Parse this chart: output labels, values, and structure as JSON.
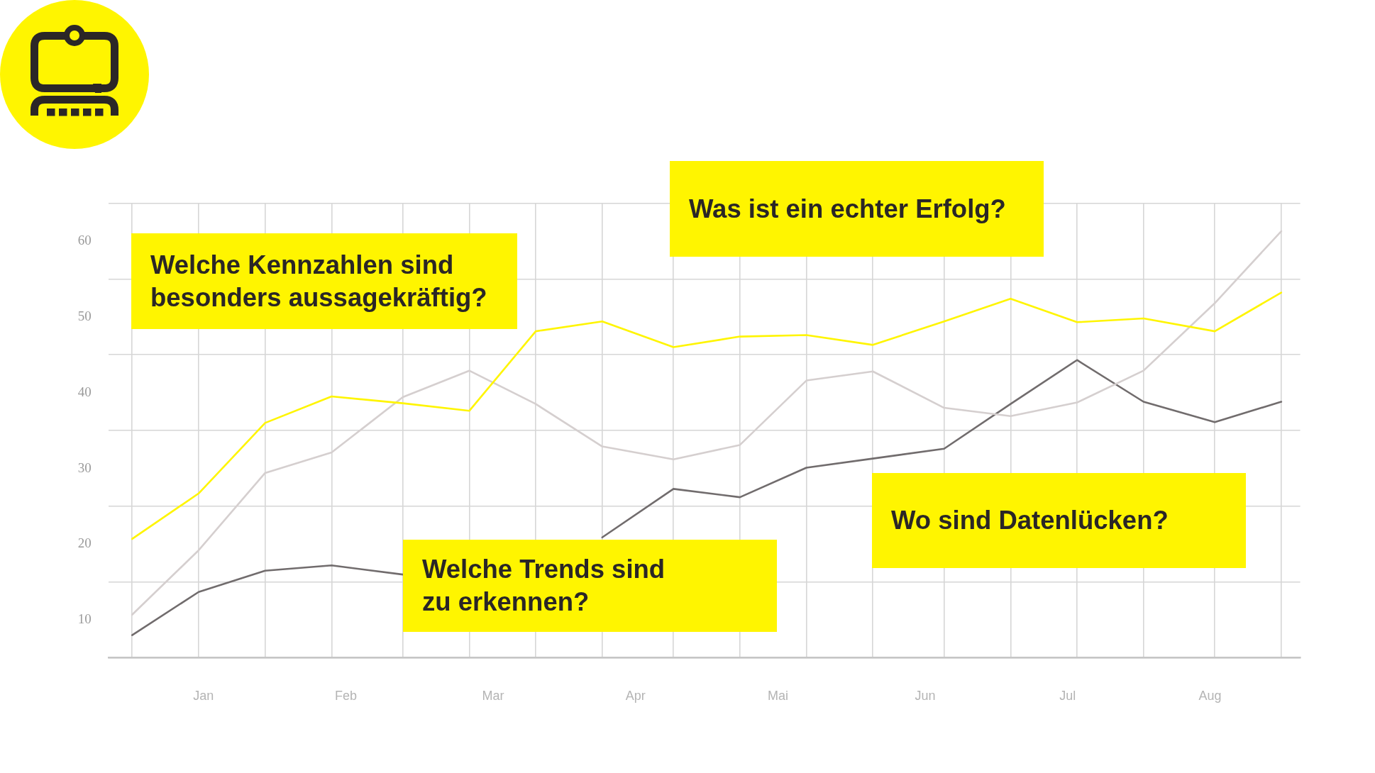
{
  "chart_data": {
    "type": "line",
    "x": [
      "--01-06",
      "--01-20",
      "--02-03",
      "--02-17",
      "--03-04",
      "--03-18",
      "--04-01",
      "--04-15",
      "--04-30",
      "--05-14",
      "--05-28",
      "--06-11",
      "--06-26",
      "--07-10",
      "--07-24",
      "--08-07",
      "--08-22",
      "--09-05"
    ],
    "series": [
      {
        "color": "#fff500",
        "values": [
          20.7,
          26.7,
          36.0,
          39.5,
          38.6,
          37.6,
          48.1,
          49.4,
          46.0,
          47.4,
          47.6,
          46.3,
          49.4,
          52.4,
          49.3,
          49.8,
          48.1,
          53.2
        ]
      },
      {
        "color": "#d5cfcf",
        "values": [
          10.7,
          19.2,
          29.4,
          32.1,
          39.4,
          42.9,
          38.5,
          32.9,
          31.2,
          33.1,
          41.6,
          42.8,
          38.0,
          36.9,
          38.7,
          42.9,
          51.8,
          61.3
        ]
      },
      {
        "color": "#716c6d",
        "values": [
          8.0,
          13.7,
          16.5,
          17.2,
          16.0,
          null,
          null,
          20.9,
          27.3,
          26.2,
          30.1,
          31.3,
          32.6,
          38.5,
          44.3,
          38.8,
          36.1,
          38.8
        ]
      }
    ],
    "xlim": [
      "--01-01",
      "--09-09"
    ],
    "xticks": [
      {
        "value": "--01-06",
        "label": null
      },
      {
        "value": "--01-20",
        "label": null
      },
      {
        "value": "--01-21",
        "label": "Jan"
      },
      {
        "value": "--02-03",
        "label": null
      },
      {
        "value": "--02-17",
        "label": null
      },
      {
        "value": "--02-20",
        "label": "Feb"
      },
      {
        "value": "--03-04",
        "label": null
      },
      {
        "value": "--03-18",
        "label": null
      },
      {
        "value": "--03-23",
        "label": "Mar"
      },
      {
        "value": "--04-01",
        "label": null
      },
      {
        "value": "--04-15",
        "label": null
      },
      {
        "value": "--04-22",
        "label": "Apr"
      },
      {
        "value": "--04-30",
        "label": null
      },
      {
        "value": "--05-14",
        "label": null
      },
      {
        "value": "--05-22",
        "label": "Mai"
      },
      {
        "value": "--05-28",
        "label": null
      },
      {
        "value": "--06-11",
        "label": null
      },
      {
        "value": "--06-22",
        "label": "Jun"
      },
      {
        "value": "--06-26",
        "label": null
      },
      {
        "value": "--07-10",
        "label": null
      },
      {
        "value": "--07-22",
        "label": "Jul"
      },
      {
        "value": "--07-24",
        "label": null
      },
      {
        "value": "--08-07",
        "label": null
      },
      {
        "value": "--08-21",
        "label": "Aug"
      },
      {
        "value": "--08-22",
        "label": null
      },
      {
        "value": "--09-05",
        "label": null
      }
    ],
    "ylim": [
      5,
      65
    ],
    "yticks": [
      {
        "value": 5,
        "label": null
      },
      10,
      {
        "value": 15,
        "label": null
      },
      20,
      {
        "value": 25,
        "label": null
      },
      30,
      {
        "value": 35,
        "label": null
      },
      40,
      {
        "value": 45,
        "label": null
      },
      50,
      {
        "value": 55,
        "label": null
      },
      60,
      {
        "value": 65,
        "label": null
      }
    ],
    "grid": true,
    "marker": "none",
    "annotations": [
      "Welche Kennzahlen sind besonders aussagekräftig?",
      "Was ist ein echter Erfolg?",
      "Welche Trends sind zu erkennen?",
      "Wo sind Datenlücken?"
    ]
  }
}
